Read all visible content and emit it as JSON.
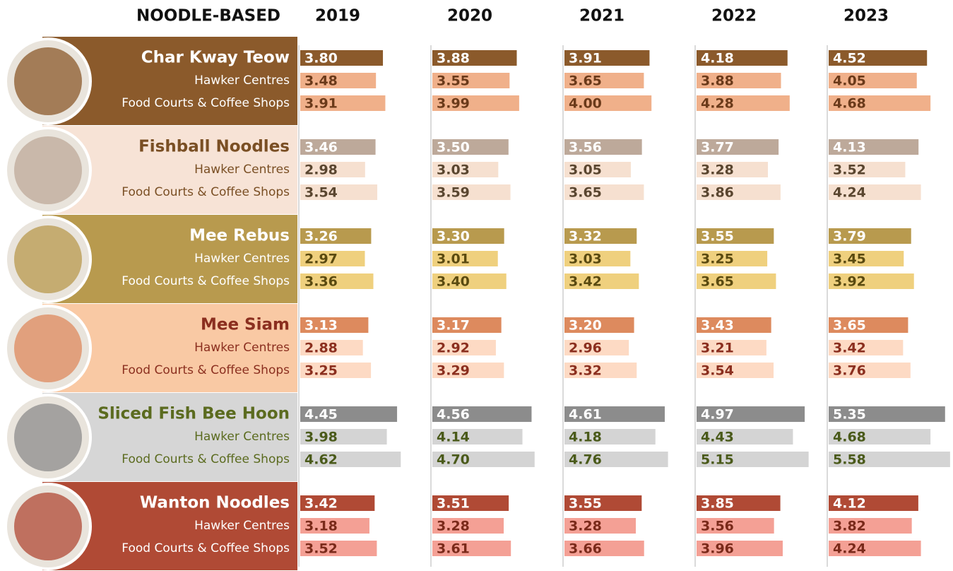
{
  "chart_data": {
    "type": "bar",
    "title": "NOODLE-BASED",
    "categories": [
      "2019",
      "2020",
      "2021",
      "2022",
      "2023"
    ],
    "groups": [
      {
        "name": "Char Kway Teow",
        "background": "#8b5a2b",
        "text_color": "#ffffff",
        "label_color": "#6b3a1a",
        "series": [
          {
            "color": "#8b5a2b",
            "values": [
              3.8,
              3.88,
              3.91,
              4.18,
              4.52
            ],
            "value_labels": [
              "3.80",
              "3.88",
              "3.91",
              "4.18",
              "4.52"
            ]
          },
          {
            "name": "Hawker Centres",
            "color": "#f0b08a",
            "values": [
              3.48,
              3.55,
              3.65,
              3.88,
              4.05
            ],
            "value_labels": [
              "3.48",
              "3.55",
              "3.65",
              "3.88",
              "4.05"
            ]
          },
          {
            "name": "Food Courts & Coffee Shops",
            "color": "#f0b08a",
            "values": [
              3.91,
              3.99,
              4.0,
              4.28,
              4.68
            ],
            "value_labels": [
              "3.91",
              "3.99",
              "4.00",
              "4.28",
              "4.68"
            ]
          }
        ]
      },
      {
        "name": "Fishball Noodles",
        "background": "#f7e3d6",
        "text_color": "#7a4f24",
        "label_color": "#5a4630",
        "series": [
          {
            "color": "#bda99a",
            "values": [
              3.46,
              3.5,
              3.56,
              3.77,
              4.13
            ],
            "value_labels": [
              "3.46",
              "3.50",
              "3.56",
              "3.77",
              "4.13"
            ]
          },
          {
            "name": "Hawker Centres",
            "color": "#f6e0d0",
            "values": [
              2.98,
              3.03,
              3.05,
              3.28,
              3.52
            ],
            "value_labels": [
              "2.98",
              "3.03",
              "3.05",
              "3.28",
              "3.52"
            ]
          },
          {
            "name": "Food Courts & Coffee Shops",
            "color": "#f6e0d0",
            "values": [
              3.54,
              3.59,
              3.65,
              3.86,
              4.24
            ],
            "value_labels": [
              "3.54",
              "3.59",
              "3.65",
              "3.86",
              "4.24"
            ]
          }
        ]
      },
      {
        "name": "Mee Rebus",
        "background": "#b89a4e",
        "text_color": "#ffffff",
        "label_color": "#5a4a10",
        "series": [
          {
            "color": "#b89a4e",
            "values": [
              3.26,
              3.3,
              3.32,
              3.55,
              3.79
            ],
            "value_labels": [
              "3.26",
              "3.30",
              "3.32",
              "3.55",
              "3.79"
            ]
          },
          {
            "name": "Hawker Centres",
            "color": "#efd07e",
            "values": [
              2.97,
              3.01,
              3.03,
              3.25,
              3.45
            ],
            "value_labels": [
              "2.97",
              "3.01",
              "3.03",
              "3.25",
              "3.45"
            ]
          },
          {
            "name": "Food Courts & Coffee Shops",
            "color": "#efd07e",
            "values": [
              3.36,
              3.4,
              3.42,
              3.65,
              3.92
            ],
            "value_labels": [
              "3.36",
              "3.40",
              "3.42",
              "3.65",
              "3.92"
            ]
          }
        ]
      },
      {
        "name": "Mee Siam",
        "background": "#f9c9a4",
        "text_color": "#8b2f1f",
        "label_color": "#8b2f1f",
        "series": [
          {
            "color": "#dd8a5e",
            "values": [
              3.13,
              3.17,
              3.2,
              3.43,
              3.65
            ],
            "value_labels": [
              "3.13",
              "3.17",
              "3.20",
              "3.43",
              "3.65"
            ]
          },
          {
            "name": "Hawker Centres",
            "color": "#fddac4",
            "values": [
              2.88,
              2.92,
              2.96,
              3.21,
              3.42
            ],
            "value_labels": [
              "2.88",
              "2.92",
              "2.96",
              "3.21",
              "3.42"
            ]
          },
          {
            "name": "Food Courts & Coffee Shops",
            "color": "#fddac4",
            "values": [
              3.25,
              3.29,
              3.32,
              3.54,
              3.76
            ],
            "value_labels": [
              "3.25",
              "3.29",
              "3.32",
              "3.54",
              "3.76"
            ]
          }
        ]
      },
      {
        "name": "Sliced Fish Bee Hoon",
        "background": "#d6d6d6",
        "text_color": "#5b6b1f",
        "label_color": "#4a5a1a",
        "series": [
          {
            "color": "#8c8c8c",
            "values": [
              4.45,
              4.56,
              4.61,
              4.97,
              5.35
            ],
            "value_labels": [
              "4.45",
              "4.56",
              "4.61",
              "4.97",
              "5.35"
            ]
          },
          {
            "name": "Hawker Centres",
            "color": "#d4d4d4",
            "values": [
              3.98,
              4.14,
              4.18,
              4.43,
              4.68
            ],
            "value_labels": [
              "3.98",
              "4.14",
              "4.18",
              "4.43",
              "4.68"
            ]
          },
          {
            "name": "Food Courts & Coffee Shops",
            "color": "#d4d4d4",
            "values": [
              4.62,
              4.7,
              4.76,
              5.15,
              5.58
            ],
            "value_labels": [
              "4.62",
              "4.70",
              "4.76",
              "5.15",
              "5.58"
            ]
          }
        ]
      },
      {
        "name": "Wanton Noodles",
        "background": "#b04a35",
        "text_color": "#ffffff",
        "label_color": "#7a2a1a",
        "series": [
          {
            "color": "#b04a35",
            "values": [
              3.42,
              3.51,
              3.55,
              3.85,
              4.12
            ],
            "value_labels": [
              "3.42",
              "3.51",
              "3.55",
              "3.85",
              "4.12"
            ]
          },
          {
            "name": "Hawker Centres",
            "color": "#f4a095",
            "values": [
              3.18,
              3.28,
              3.28,
              3.56,
              3.82
            ],
            "value_labels": [
              "3.18",
              "3.28",
              "3.28",
              "3.56",
              "3.82"
            ]
          },
          {
            "name": "Food Courts & Coffee Shops",
            "color": "#f4a095",
            "values": [
              3.52,
              3.61,
              3.66,
              3.96,
              4.24
            ],
            "value_labels": [
              "3.52",
              "3.61",
              "3.66",
              "3.96",
              "4.24"
            ]
          }
        ]
      }
    ]
  }
}
